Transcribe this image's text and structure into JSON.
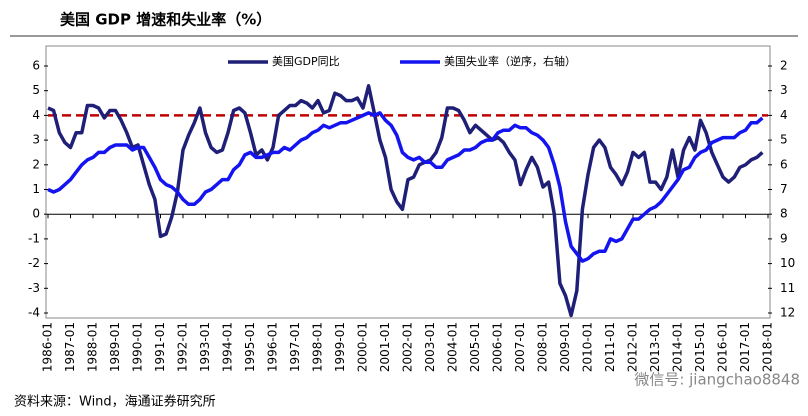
{
  "chart_data": {
    "type": "line",
    "title": "美国 GDP 增速和失业率（%）",
    "source": "资料来源：Wind，海通证券研究所",
    "watermark": "微信号: jiangchao8848",
    "x": [
      1986,
      1986.25,
      1986.5,
      1986.75,
      1987,
      1987.25,
      1987.5,
      1987.75,
      1988,
      1988.25,
      1988.5,
      1988.75,
      1989,
      1989.25,
      1989.5,
      1989.75,
      1990,
      1990.25,
      1990.5,
      1990.75,
      1991,
      1991.25,
      1991.5,
      1991.75,
      1992,
      1992.25,
      1992.5,
      1992.75,
      1993,
      1993.25,
      1993.5,
      1993.75,
      1994,
      1994.25,
      1994.5,
      1994.75,
      1995,
      1995.25,
      1995.5,
      1995.75,
      1996,
      1996.25,
      1996.5,
      1996.75,
      1997,
      1997.25,
      1997.5,
      1997.75,
      1998,
      1998.25,
      1998.5,
      1998.75,
      1999,
      1999.25,
      1999.5,
      1999.75,
      2000,
      2000.25,
      2000.5,
      2000.75,
      2001,
      2001.25,
      2001.5,
      2001.75,
      2002,
      2002.25,
      2002.5,
      2002.75,
      2003,
      2003.25,
      2003.5,
      2003.75,
      2004,
      2004.25,
      2004.5,
      2004.75,
      2005,
      2005.25,
      2005.5,
      2005.75,
      2006,
      2006.25,
      2006.5,
      2006.75,
      2007,
      2007.25,
      2007.5,
      2007.75,
      2008,
      2008.25,
      2008.5,
      2008.75,
      2009,
      2009.25,
      2009.5,
      2009.75,
      2010,
      2010.25,
      2010.5,
      2010.75,
      2011,
      2011.25,
      2011.5,
      2011.75,
      2012,
      2012.25,
      2012.5,
      2012.75,
      2013,
      2013.25,
      2013.5,
      2013.75,
      2014,
      2014.25,
      2014.5,
      2014.75,
      2015,
      2015.25,
      2015.5,
      2015.75,
      2016,
      2016.25,
      2016.5,
      2016.75,
      2017,
      2017.25,
      2017.5,
      2017.75
    ],
    "series": [
      {
        "name": "美国GDP同比",
        "color": "#1f1f78",
        "axis": "y",
        "values": [
          4.3,
          4.2,
          3.3,
          2.9,
          2.7,
          3.3,
          3.3,
          4.4,
          4.4,
          4.3,
          3.9,
          4.2,
          4.2,
          3.8,
          3.3,
          2.7,
          2.8,
          2.0,
          1.2,
          0.6,
          -0.9,
          -0.8,
          -0.1,
          0.9,
          2.6,
          3.2,
          3.7,
          4.3,
          3.3,
          2.7,
          2.5,
          2.6,
          3.3,
          4.2,
          4.3,
          4.1,
          3.3,
          2.4,
          2.6,
          2.2,
          2.7,
          4.0,
          4.2,
          4.4,
          4.4,
          4.6,
          4.5,
          4.3,
          4.6,
          4.1,
          4.2,
          4.9,
          4.8,
          4.6,
          4.6,
          4.7,
          4.3,
          5.2,
          4.1,
          3.0,
          2.3,
          1.0,
          0.5,
          0.2,
          1.4,
          1.5,
          2.0,
          2.1,
          2.2,
          2.5,
          3.1,
          4.3,
          4.3,
          4.2,
          3.8,
          3.3,
          3.6,
          3.4,
          3.2,
          3.0,
          3.1,
          2.9,
          2.5,
          2.2,
          1.2,
          1.8,
          2.3,
          1.9,
          1.1,
          1.3,
          0.0,
          -2.8,
          -3.3,
          -4.1,
          -3.1,
          0.2,
          1.6,
          2.7,
          3.0,
          2.7,
          1.9,
          1.6,
          1.2,
          1.7,
          2.5,
          2.3,
          2.5,
          1.3,
          1.3,
          1.0,
          1.5,
          2.6,
          1.5,
          2.6,
          3.1,
          2.6,
          3.8,
          3.3,
          2.5,
          2.0,
          1.5,
          1.3,
          1.5,
          1.9,
          2.0,
          2.2,
          2.3,
          2.5
        ]
      },
      {
        "name": "美国失业率（逆序，右轴）",
        "color": "#1414f0",
        "axis": "y2",
        "values": [
          7.0,
          7.1,
          7.0,
          6.8,
          6.6,
          6.3,
          6.0,
          5.8,
          5.7,
          5.5,
          5.5,
          5.3,
          5.2,
          5.2,
          5.2,
          5.4,
          5.3,
          5.3,
          5.7,
          6.1,
          6.6,
          6.8,
          6.9,
          7.1,
          7.4,
          7.6,
          7.6,
          7.4,
          7.1,
          7.0,
          6.8,
          6.6,
          6.6,
          6.2,
          6.0,
          5.6,
          5.5,
          5.7,
          5.7,
          5.6,
          5.5,
          5.5,
          5.3,
          5.4,
          5.2,
          5.0,
          4.9,
          4.7,
          4.6,
          4.4,
          4.5,
          4.4,
          4.3,
          4.3,
          4.2,
          4.1,
          4.0,
          3.9,
          4.0,
          3.9,
          4.2,
          4.4,
          4.8,
          5.5,
          5.7,
          5.8,
          5.7,
          5.9,
          5.9,
          6.1,
          6.1,
          5.8,
          5.7,
          5.6,
          5.4,
          5.4,
          5.3,
          5.1,
          5.0,
          5.0,
          4.7,
          4.6,
          4.6,
          4.4,
          4.5,
          4.5,
          4.7,
          4.8,
          5.0,
          5.3,
          6.0,
          6.9,
          8.3,
          9.3,
          9.6,
          9.9,
          9.8,
          9.6,
          9.5,
          9.5,
          9.0,
          9.1,
          9.0,
          8.6,
          8.2,
          8.2,
          8.0,
          7.8,
          7.7,
          7.5,
          7.2,
          6.9,
          6.6,
          6.2,
          6.1,
          5.7,
          5.5,
          5.4,
          5.1,
          5.0,
          4.9,
          4.9,
          4.9,
          4.7,
          4.6,
          4.3,
          4.3,
          4.1
        ]
      }
    ],
    "xlim": [
      1986,
      2018
    ],
    "xticks": [
      {
        "value": 1986,
        "label": "1986-01"
      },
      {
        "value": 1987,
        "label": "1987-01"
      },
      {
        "value": 1988,
        "label": "1988-01"
      },
      {
        "value": 1989,
        "label": "1989-01"
      },
      {
        "value": 1990,
        "label": "1990-01"
      },
      {
        "value": 1991,
        "label": "1991-01"
      },
      {
        "value": 1992,
        "label": "1992-01"
      },
      {
        "value": 1993,
        "label": "1993-01"
      },
      {
        "value": 1994,
        "label": "1994-01"
      },
      {
        "value": 1995,
        "label": "1995-01"
      },
      {
        "value": 1996,
        "label": "1996-01"
      },
      {
        "value": 1997,
        "label": "1997-01"
      },
      {
        "value": 1998,
        "label": "1998-01"
      },
      {
        "value": 1999,
        "label": "1999-01"
      },
      {
        "value": 2000,
        "label": "2000-01"
      },
      {
        "value": 2001,
        "label": "2001-01"
      },
      {
        "value": 2002,
        "label": "2002-01"
      },
      {
        "value": 2003,
        "label": "2003-01"
      },
      {
        "value": 2004,
        "label": "2004-01"
      },
      {
        "value": 2005,
        "label": "2005-01"
      },
      {
        "value": 2006,
        "label": "2006-01"
      },
      {
        "value": 2007,
        "label": "2007-01"
      },
      {
        "value": 2008,
        "label": "2008-01"
      },
      {
        "value": 2009,
        "label": "2009-01"
      },
      {
        "value": 2010,
        "label": "2010-01"
      },
      {
        "value": 2011,
        "label": "2011-01"
      },
      {
        "value": 2012,
        "label": "2012-01"
      },
      {
        "value": 2013,
        "label": "2013-01"
      },
      {
        "value": 2014,
        "label": "2014-01"
      },
      {
        "value": 2015,
        "label": "2015-01"
      },
      {
        "value": 2016,
        "label": "2016-01"
      },
      {
        "value": 2017,
        "label": "2017-01"
      },
      {
        "value": 2018,
        "label": "2018-01"
      }
    ],
    "ylim": [
      -4,
      6
    ],
    "yticks": [
      -4,
      -3,
      -2,
      -1,
      0,
      1,
      2,
      3,
      4,
      5,
      6
    ],
    "y2lim": [
      12,
      2
    ],
    "y2ticks": [
      2,
      3,
      4,
      5,
      6,
      7,
      8,
      9,
      10,
      11,
      12
    ],
    "reference_line": {
      "value": 4,
      "color": "#c00000"
    },
    "legend": "top"
  }
}
